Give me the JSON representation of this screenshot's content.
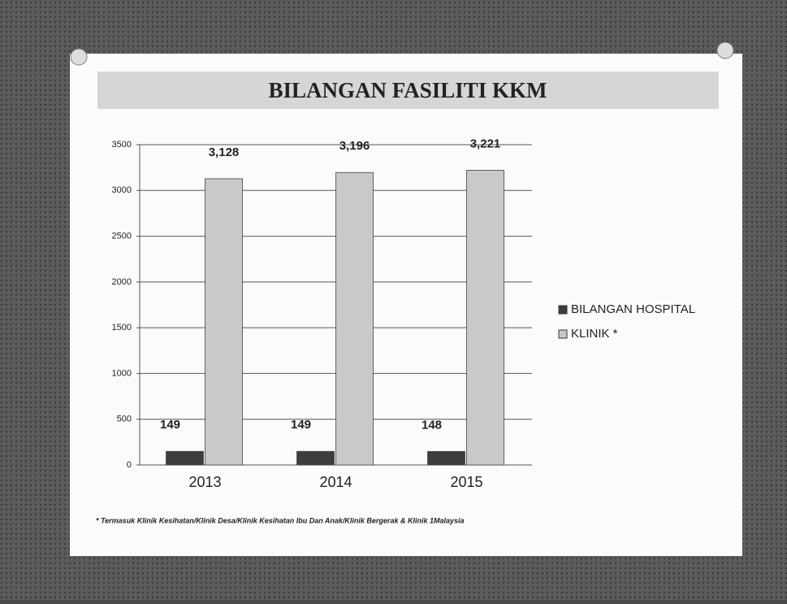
{
  "chart_data": {
    "type": "bar",
    "title": "BILANGAN FASILITI KKM",
    "categories": [
      "2013",
      "2014",
      "2015"
    ],
    "series": [
      {
        "name": "BILANGAN HOSPITAL",
        "color": "#3d3d3d",
        "values": [
          149,
          149,
          148
        ]
      },
      {
        "name": "KLINIK *",
        "color": "#c9c9c9",
        "values": [
          3128,
          3196,
          3221
        ],
        "value_labels": [
          "3,128",
          "3,196",
          "3,221"
        ]
      }
    ],
    "ylim": [
      0,
      3500
    ],
    "yticks": [
      0,
      500,
      1000,
      1500,
      2000,
      2500,
      3000,
      3500
    ],
    "grid": true,
    "legend": "right",
    "footnote": "* Termasuk Klinik Kesihatan/Klinik  Desa/Klinik Kesihatan Ibu Dan Anak/Klinik Bergerak & Klinik 1Malaysia"
  }
}
